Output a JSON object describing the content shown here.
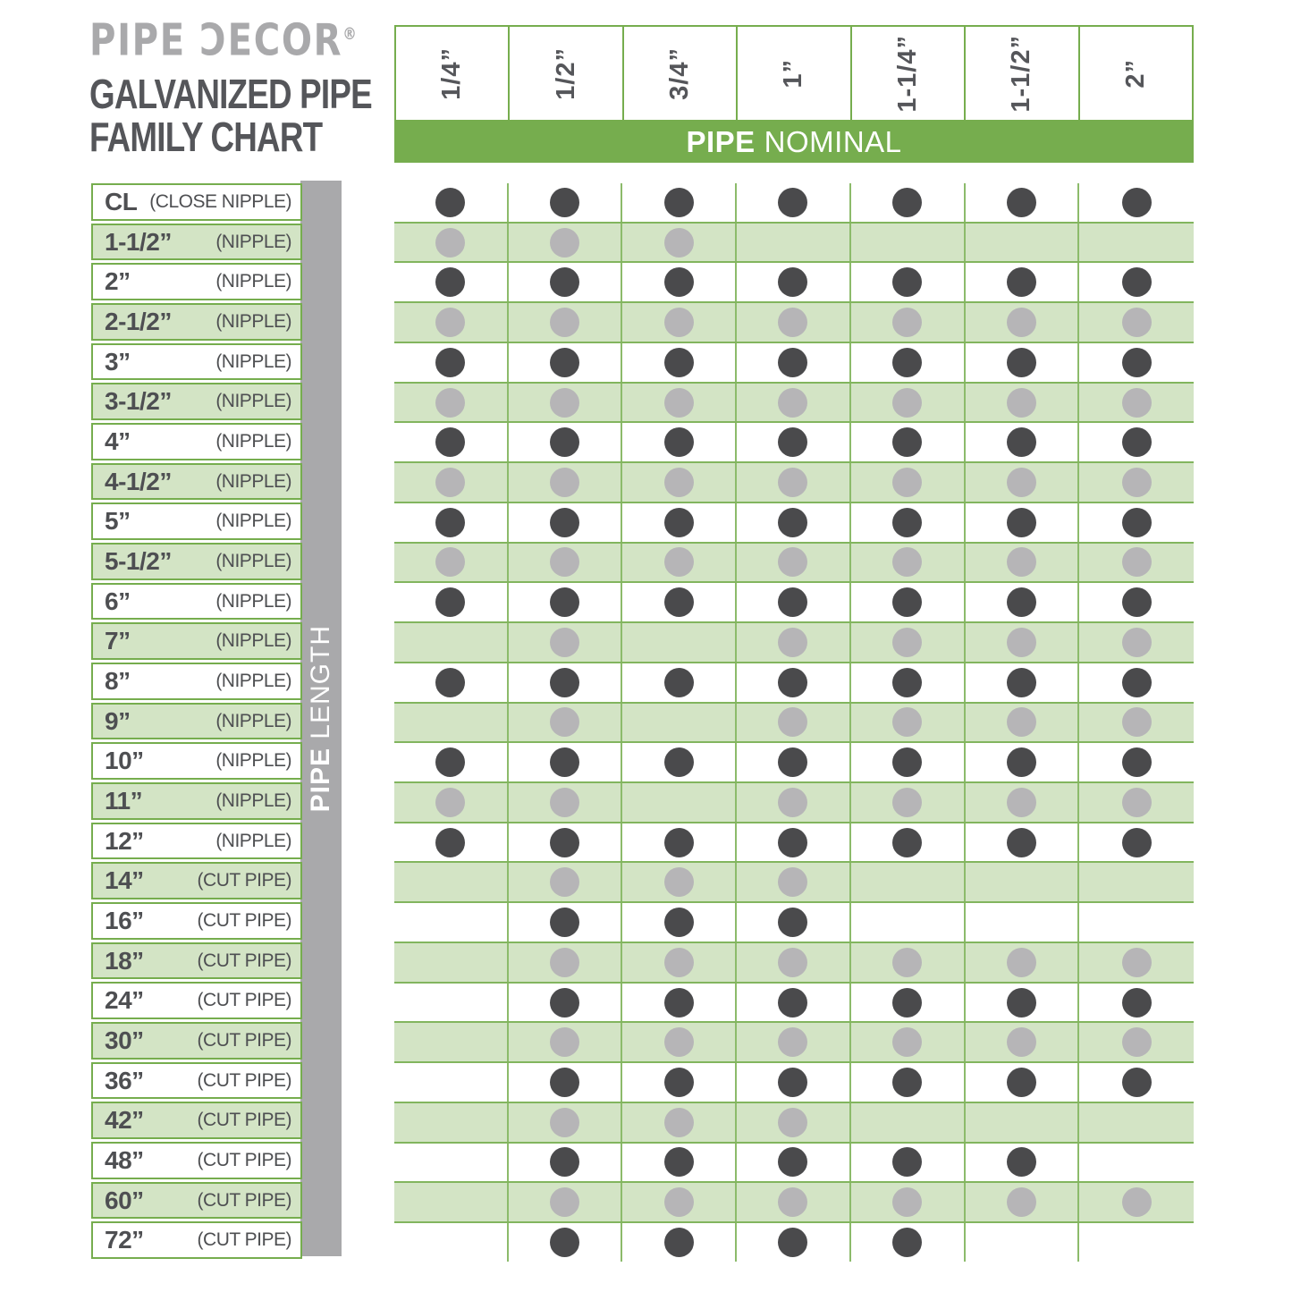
{
  "title": {
    "brand": "PIPE ƆECOR",
    "brand_reg": "®",
    "line1": "GALVANIZED PIPE",
    "line2": "FAMILY CHART"
  },
  "column_header": {
    "label_bold": "PIPE",
    "label_rest": "NOMINAL"
  },
  "row_header": {
    "label_bold": "PIPE",
    "label_rest": "LENGTH"
  },
  "colors": {
    "green": "#76ad4e",
    "row_green": "#d3e4c5",
    "row_border_green": "#82b55e",
    "grid_line_green": "#8cbb6b",
    "dark_dot": "#4a4a4c",
    "light_dot": "#b6b5b7",
    "bar_gray": "#a9a9ab",
    "text_dark": "#4e4f52",
    "logo_gray": "#a9a9ab"
  },
  "chart_data": {
    "type": "table",
    "title": "PIPE DECOR GALVANIZED PIPE FAMILY CHART",
    "x_header": "PIPE NOMINAL",
    "y_header": "PIPE LENGTH",
    "columns": [
      "1/4”",
      "1/2”",
      "3/4”",
      "1”",
      "1-1/4”",
      "1-1/2”",
      "2”"
    ],
    "legend": "dot = size combination available",
    "rows": [
      {
        "length": "CL",
        "category": "(CLOSE NIPPLE)",
        "available": [
          1,
          1,
          1,
          1,
          1,
          1,
          1
        ]
      },
      {
        "length": "1-1/2”",
        "category": "(NIPPLE)",
        "available": [
          1,
          1,
          1,
          0,
          0,
          0,
          0
        ]
      },
      {
        "length": "2”",
        "category": "(NIPPLE)",
        "available": [
          1,
          1,
          1,
          1,
          1,
          1,
          1
        ]
      },
      {
        "length": "2-1/2”",
        "category": "(NIPPLE)",
        "available": [
          1,
          1,
          1,
          1,
          1,
          1,
          1
        ]
      },
      {
        "length": "3”",
        "category": "(NIPPLE)",
        "available": [
          1,
          1,
          1,
          1,
          1,
          1,
          1
        ]
      },
      {
        "length": "3-1/2”",
        "category": "(NIPPLE)",
        "available": [
          1,
          1,
          1,
          1,
          1,
          1,
          1
        ]
      },
      {
        "length": "4”",
        "category": "(NIPPLE)",
        "available": [
          1,
          1,
          1,
          1,
          1,
          1,
          1
        ]
      },
      {
        "length": "4-1/2”",
        "category": "(NIPPLE)",
        "available": [
          1,
          1,
          1,
          1,
          1,
          1,
          1
        ]
      },
      {
        "length": "5”",
        "category": "(NIPPLE)",
        "available": [
          1,
          1,
          1,
          1,
          1,
          1,
          1
        ]
      },
      {
        "length": "5-1/2”",
        "category": "(NIPPLE)",
        "available": [
          1,
          1,
          1,
          1,
          1,
          1,
          1
        ]
      },
      {
        "length": "6”",
        "category": "(NIPPLE)",
        "available": [
          1,
          1,
          1,
          1,
          1,
          1,
          1
        ]
      },
      {
        "length": "7”",
        "category": "(NIPPLE)",
        "available": [
          0,
          1,
          0,
          1,
          1,
          1,
          1
        ]
      },
      {
        "length": "8”",
        "category": "(NIPPLE)",
        "available": [
          1,
          1,
          1,
          1,
          1,
          1,
          1
        ]
      },
      {
        "length": "9”",
        "category": "(NIPPLE)",
        "available": [
          0,
          1,
          0,
          1,
          1,
          1,
          1
        ]
      },
      {
        "length": "10”",
        "category": "(NIPPLE)",
        "available": [
          1,
          1,
          1,
          1,
          1,
          1,
          1
        ]
      },
      {
        "length": "11”",
        "category": "(NIPPLE)",
        "available": [
          1,
          1,
          0,
          1,
          1,
          1,
          1
        ]
      },
      {
        "length": "12”",
        "category": "(NIPPLE)",
        "available": [
          1,
          1,
          1,
          1,
          1,
          1,
          1
        ]
      },
      {
        "length": "14”",
        "category": "(CUT PIPE)",
        "available": [
          0,
          1,
          1,
          1,
          0,
          0,
          0
        ]
      },
      {
        "length": "16”",
        "category": "(CUT PIPE)",
        "available": [
          0,
          1,
          1,
          1,
          0,
          0,
          0
        ]
      },
      {
        "length": "18”",
        "category": "(CUT PIPE)",
        "available": [
          0,
          1,
          1,
          1,
          1,
          1,
          1
        ]
      },
      {
        "length": "24”",
        "category": "(CUT PIPE)",
        "available": [
          0,
          1,
          1,
          1,
          1,
          1,
          1
        ]
      },
      {
        "length": "30”",
        "category": "(CUT PIPE)",
        "available": [
          0,
          1,
          1,
          1,
          1,
          1,
          1
        ]
      },
      {
        "length": "36”",
        "category": "(CUT PIPE)",
        "available": [
          0,
          1,
          1,
          1,
          1,
          1,
          1
        ]
      },
      {
        "length": "42”",
        "category": "(CUT PIPE)",
        "available": [
          0,
          1,
          1,
          1,
          0,
          0,
          0
        ]
      },
      {
        "length": "48”",
        "category": "(CUT PIPE)",
        "available": [
          0,
          1,
          1,
          1,
          1,
          1,
          0
        ]
      },
      {
        "length": "60”",
        "category": "(CUT PIPE)",
        "available": [
          0,
          1,
          1,
          1,
          1,
          1,
          1
        ]
      },
      {
        "length": "72”",
        "category": "(CUT PIPE)",
        "available": [
          0,
          1,
          1,
          1,
          1,
          0,
          0
        ]
      }
    ]
  }
}
